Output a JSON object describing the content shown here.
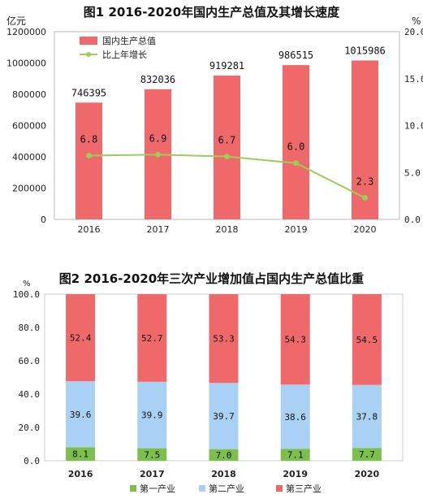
{
  "chart_data": [
    {
      "type": "bar",
      "title": "图1   2016-2020年国内生产总值及其增长速度",
      "categories": [
        "2016",
        "2017",
        "2018",
        "2019",
        "2020"
      ],
      "y_unit_left": "亿元",
      "y_unit_right": "%",
      "ylim_left": [
        0,
        1200000
      ],
      "ylim_right": [
        0.0,
        20.0
      ],
      "left_ticks": [
        "0",
        "200000",
        "400000",
        "600000",
        "800000",
        "1000000",
        "1200000"
      ],
      "right_ticks": [
        "0.0",
        "5.0",
        "10.0",
        "15.0",
        "20.0"
      ],
      "legend_placement": "top-left",
      "series": [
        {
          "name": "国内生产总值",
          "type": "bar",
          "axis": "left",
          "color": "#f0696a",
          "values": [
            746395,
            832036,
            919281,
            986515,
            1015986
          ],
          "labels": [
            "746395",
            "832036",
            "919281",
            "986515",
            "1015986"
          ]
        },
        {
          "name": "比上年增长",
          "type": "line",
          "axis": "right",
          "color": "#9acd5a",
          "values": [
            6.8,
            6.9,
            6.7,
            6.0,
            2.3
          ],
          "labels": [
            "6.8",
            "6.9",
            "6.7",
            "6.0",
            "2.3"
          ]
        }
      ]
    },
    {
      "type": "stacked-bar",
      "title": "图2   2016-2020年三次产业增加值占国内生产总值比重",
      "categories": [
        "2016",
        "2017",
        "2018",
        "2019",
        "2020"
      ],
      "y_unit": "%",
      "ylim": [
        0,
        100
      ],
      "ticks": [
        "0.0",
        "20.0",
        "40.0",
        "60.0",
        "80.0",
        "100.0"
      ],
      "legend_placement": "bottom",
      "series": [
        {
          "name": "第一产业",
          "color": "#7cc04b",
          "values": [
            8.1,
            7.5,
            7.0,
            7.1,
            7.7
          ],
          "labels": [
            "8.1",
            "7.5",
            "7.0",
            "7.1",
            "7.7"
          ]
        },
        {
          "name": "第二产业",
          "color": "#a9d1f3",
          "values": [
            39.6,
            39.9,
            39.7,
            38.6,
            37.8
          ],
          "labels": [
            "39.6",
            "39.9",
            "39.7",
            "38.6",
            "37.8"
          ]
        },
        {
          "name": "第三产业",
          "color": "#f0696a",
          "values": [
            52.4,
            52.7,
            53.3,
            54.3,
            54.5
          ],
          "labels": [
            "52.4",
            "52.7",
            "53.3",
            "54.3",
            "54.5"
          ]
        }
      ]
    }
  ]
}
